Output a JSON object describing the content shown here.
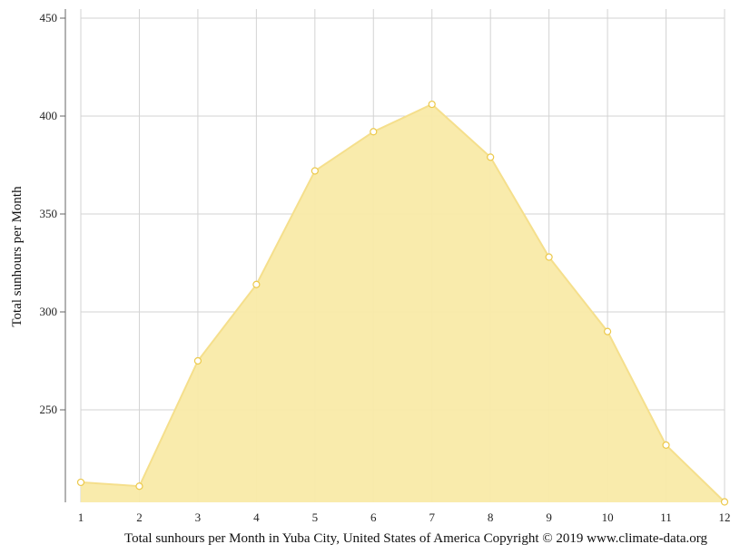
{
  "chart_data": {
    "type": "area",
    "x": [
      1,
      2,
      3,
      4,
      5,
      6,
      7,
      8,
      9,
      10,
      11,
      12
    ],
    "values": [
      213,
      211,
      275,
      314,
      372,
      392,
      406,
      379,
      328,
      290,
      232,
      203
    ],
    "ylabel": "Total sunhours per Month",
    "caption": "Total sunhours per Month in Yuba City, United States of America Copyright © 2019 www.climate-data.org",
    "yticks": [
      250,
      300,
      350,
      400,
      450
    ],
    "xticks": [
      "1",
      "2",
      "3",
      "4",
      "5",
      "6",
      "7",
      "8",
      "9",
      "10",
      "11",
      "12"
    ],
    "ylim": [
      203,
      455
    ],
    "grid": true,
    "colors": {
      "fill": "#f9eaa8",
      "line": "#f5df8c",
      "marker_stroke": "#ecc94b",
      "marker_fill": "#ffffff",
      "grid": "#d3d3d3"
    }
  }
}
